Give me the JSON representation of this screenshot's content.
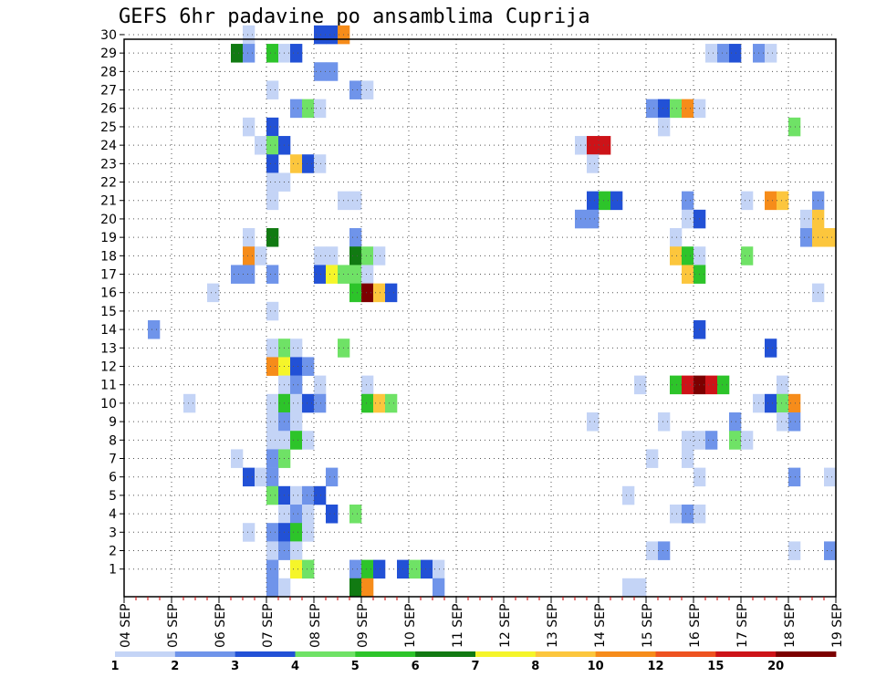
{
  "title": "GEFS 6hr padavine po ansamblima Cuprija",
  "chart_data": {
    "type": "heatmap",
    "title": "GEFS 6hr padavine po ansamblima Cuprija",
    "x_tick_labels": [
      "04 SEP",
      "05 SEP",
      "06 SEP",
      "07 SEP",
      "08 SEP",
      "09 SEP",
      "10 SEP",
      "11 SEP",
      "12 SEP",
      "13 SEP",
      "14 SEP",
      "15 SEP",
      "16 SEP",
      "17 SEP",
      "18 SEP",
      "19 SEP"
    ],
    "y_tick_labels": [
      "1",
      "2",
      "3",
      "4",
      "5",
      "6",
      "7",
      "8",
      "9",
      "10",
      "11",
      "12",
      "13",
      "14",
      "15",
      "16",
      "17",
      "18",
      "19",
      "20",
      "21",
      "22",
      "23",
      "24",
      "25",
      "26",
      "27",
      "28",
      "29",
      "30"
    ],
    "xlim": [
      0,
      60
    ],
    "ylim": [
      0,
      30
    ],
    "grid": true,
    "colorbar": {
      "levels": [
        "1",
        "2",
        "3",
        "4",
        "5",
        "6",
        "7",
        "8",
        "10",
        "12",
        "15",
        "20"
      ],
      "colors": [
        "#c4d4f6",
        "#6f94ea",
        "#2251d6",
        "#6fe266",
        "#2dc42a",
        "#117a12",
        "#f5f52a",
        "#fcc63d",
        "#f68c1a",
        "#ee5320",
        "#cd1318",
        "#7c0000"
      ]
    },
    "colors_by_class": {
      "1": "#c4d4f6",
      "2": "#6f94ea",
      "3": "#2251d6",
      "4": "#6fe266",
      "5": "#2dc42a",
      "6": "#117a12",
      "7": "#f5f52a",
      "8": "#fcc63d",
      "10": "#f68c1a",
      "12": "#ee5320",
      "15": "#cd1318",
      "20": "#7c0000"
    },
    "cells": [
      {
        "member": 30,
        "step": 10,
        "v": 1
      },
      {
        "member": 30,
        "step": 16,
        "v": 3
      },
      {
        "member": 30,
        "step": 17,
        "v": 3
      },
      {
        "member": 30,
        "step": 18,
        "v": 10
      },
      {
        "member": 29,
        "step": 9,
        "v": 6
      },
      {
        "member": 29,
        "step": 10,
        "v": 2
      },
      {
        "member": 29,
        "step": 12,
        "v": 5
      },
      {
        "member": 29,
        "step": 13,
        "v": 1
      },
      {
        "member": 29,
        "step": 14,
        "v": 3
      },
      {
        "member": 29,
        "step": 49,
        "v": 1
      },
      {
        "member": 29,
        "step": 50,
        "v": 2
      },
      {
        "member": 29,
        "step": 51,
        "v": 3
      },
      {
        "member": 29,
        "step": 53,
        "v": 2
      },
      {
        "member": 29,
        "step": 54,
        "v": 1
      },
      {
        "member": 28,
        "step": 16,
        "v": 2
      },
      {
        "member": 28,
        "step": 17,
        "v": 2
      },
      {
        "member": 27,
        "step": 12,
        "v": 1
      },
      {
        "member": 27,
        "step": 19,
        "v": 2
      },
      {
        "member": 27,
        "step": 20,
        "v": 1
      },
      {
        "member": 26,
        "step": 14,
        "v": 2
      },
      {
        "member": 26,
        "step": 15,
        "v": 4
      },
      {
        "member": 26,
        "step": 16,
        "v": 1
      },
      {
        "member": 26,
        "step": 44,
        "v": 2
      },
      {
        "member": 26,
        "step": 45,
        "v": 3
      },
      {
        "member": 26,
        "step": 46,
        "v": 4
      },
      {
        "member": 26,
        "step": 47,
        "v": 10
      },
      {
        "member": 26,
        "step": 48,
        "v": 1
      },
      {
        "member": 25,
        "step": 10,
        "v": 1
      },
      {
        "member": 25,
        "step": 12,
        "v": 3
      },
      {
        "member": 25,
        "step": 45,
        "v": 1
      },
      {
        "member": 25,
        "step": 56,
        "v": 4
      },
      {
        "member": 24,
        "step": 11,
        "v": 1
      },
      {
        "member": 24,
        "step": 12,
        "v": 4
      },
      {
        "member": 24,
        "step": 13,
        "v": 3
      },
      {
        "member": 24,
        "step": 38,
        "v": 1
      },
      {
        "member": 24,
        "step": 39,
        "v": 15
      },
      {
        "member": 24,
        "step": 40,
        "v": 15
      },
      {
        "member": 23,
        "step": 12,
        "v": 3
      },
      {
        "member": 23,
        "step": 14,
        "v": 8
      },
      {
        "member": 23,
        "step": 15,
        "v": 3
      },
      {
        "member": 23,
        "step": 16,
        "v": 1
      },
      {
        "member": 23,
        "step": 39,
        "v": 1
      },
      {
        "member": 22,
        "step": 12,
        "v": 1
      },
      {
        "member": 22,
        "step": 13,
        "v": 1
      },
      {
        "member": 21,
        "step": 12,
        "v": 1
      },
      {
        "member": 21,
        "step": 18,
        "v": 1
      },
      {
        "member": 21,
        "step": 19,
        "v": 1
      },
      {
        "member": 21,
        "step": 39,
        "v": 3
      },
      {
        "member": 21,
        "step": 40,
        "v": 5
      },
      {
        "member": 21,
        "step": 41,
        "v": 3
      },
      {
        "member": 21,
        "step": 47,
        "v": 2
      },
      {
        "member": 21,
        "step": 52,
        "v": 1
      },
      {
        "member": 21,
        "step": 54,
        "v": 10
      },
      {
        "member": 21,
        "step": 55,
        "v": 8
      },
      {
        "member": 21,
        "step": 58,
        "v": 2
      },
      {
        "member": 20,
        "step": 38,
        "v": 2
      },
      {
        "member": 20,
        "step": 39,
        "v": 2
      },
      {
        "member": 20,
        "step": 47,
        "v": 1
      },
      {
        "member": 20,
        "step": 48,
        "v": 3
      },
      {
        "member": 20,
        "step": 57,
        "v": 1
      },
      {
        "member": 20,
        "step": 58,
        "v": 8
      },
      {
        "member": 19,
        "step": 10,
        "v": 1
      },
      {
        "member": 19,
        "step": 12,
        "v": 6
      },
      {
        "member": 19,
        "step": 19,
        "v": 2
      },
      {
        "member": 19,
        "step": 46,
        "v": 1
      },
      {
        "member": 19,
        "step": 57,
        "v": 2
      },
      {
        "member": 19,
        "step": 58,
        "v": 8
      },
      {
        "member": 19,
        "step": 59,
        "v": 8
      },
      {
        "member": 18,
        "step": 10,
        "v": 10
      },
      {
        "member": 18,
        "step": 11,
        "v": 1
      },
      {
        "member": 18,
        "step": 16,
        "v": 1
      },
      {
        "member": 18,
        "step": 17,
        "v": 1
      },
      {
        "member": 18,
        "step": 19,
        "v": 6
      },
      {
        "member": 18,
        "step": 20,
        "v": 4
      },
      {
        "member": 18,
        "step": 21,
        "v": 1
      },
      {
        "member": 18,
        "step": 46,
        "v": 8
      },
      {
        "member": 18,
        "step": 47,
        "v": 5
      },
      {
        "member": 18,
        "step": 48,
        "v": 1
      },
      {
        "member": 18,
        "step": 52,
        "v": 4
      },
      {
        "member": 17,
        "step": 9,
        "v": 2
      },
      {
        "member": 17,
        "step": 10,
        "v": 2
      },
      {
        "member": 17,
        "step": 12,
        "v": 2
      },
      {
        "member": 17,
        "step": 16,
        "v": 3
      },
      {
        "member": 17,
        "step": 17,
        "v": 7
      },
      {
        "member": 17,
        "step": 18,
        "v": 4
      },
      {
        "member": 17,
        "step": 19,
        "v": 4
      },
      {
        "member": 17,
        "step": 20,
        "v": 1
      },
      {
        "member": 17,
        "step": 47,
        "v": 8
      },
      {
        "member": 17,
        "step": 48,
        "v": 5
      },
      {
        "member": 16,
        "step": 7,
        "v": 1
      },
      {
        "member": 16,
        "step": 19,
        "v": 5
      },
      {
        "member": 16,
        "step": 20,
        "v": 20
      },
      {
        "member": 16,
        "step": 21,
        "v": 8
      },
      {
        "member": 16,
        "step": 22,
        "v": 3
      },
      {
        "member": 16,
        "step": 58,
        "v": 1
      },
      {
        "member": 15,
        "step": 12,
        "v": 1
      },
      {
        "member": 14,
        "step": 2,
        "v": 2
      },
      {
        "member": 14,
        "step": 48,
        "v": 3
      },
      {
        "member": 13,
        "step": 12,
        "v": 1
      },
      {
        "member": 13,
        "step": 13,
        "v": 4
      },
      {
        "member": 13,
        "step": 14,
        "v": 1
      },
      {
        "member": 13,
        "step": 18,
        "v": 4
      },
      {
        "member": 13,
        "step": 54,
        "v": 3
      },
      {
        "member": 12,
        "step": 12,
        "v": 10
      },
      {
        "member": 12,
        "step": 13,
        "v": 7
      },
      {
        "member": 12,
        "step": 14,
        "v": 3
      },
      {
        "member": 12,
        "step": 15,
        "v": 2
      },
      {
        "member": 11,
        "step": 13,
        "v": 1
      },
      {
        "member": 11,
        "step": 14,
        "v": 2
      },
      {
        "member": 11,
        "step": 16,
        "v": 1
      },
      {
        "member": 11,
        "step": 20,
        "v": 1
      },
      {
        "member": 11,
        "step": 43,
        "v": 1
      },
      {
        "member": 11,
        "step": 46,
        "v": 5
      },
      {
        "member": 11,
        "step": 47,
        "v": 15
      },
      {
        "member": 11,
        "step": 48,
        "v": 20
      },
      {
        "member": 11,
        "step": 49,
        "v": 15
      },
      {
        "member": 11,
        "step": 50,
        "v": 5
      },
      {
        "member": 11,
        "step": 55,
        "v": 1
      },
      {
        "member": 10,
        "step": 5,
        "v": 1
      },
      {
        "member": 10,
        "step": 12,
        "v": 1
      },
      {
        "member": 10,
        "step": 13,
        "v": 5
      },
      {
        "member": 10,
        "step": 14,
        "v": 1
      },
      {
        "member": 10,
        "step": 15,
        "v": 3
      },
      {
        "member": 10,
        "step": 16,
        "v": 2
      },
      {
        "member": 10,
        "step": 20,
        "v": 5
      },
      {
        "member": 10,
        "step": 21,
        "v": 8
      },
      {
        "member": 10,
        "step": 22,
        "v": 4
      },
      {
        "member": 10,
        "step": 53,
        "v": 1
      },
      {
        "member": 10,
        "step": 54,
        "v": 3
      },
      {
        "member": 10,
        "step": 55,
        "v": 4
      },
      {
        "member": 10,
        "step": 56,
        "v": 10
      },
      {
        "member": 9,
        "step": 12,
        "v": 1
      },
      {
        "member": 9,
        "step": 13,
        "v": 2
      },
      {
        "member": 9,
        "step": 14,
        "v": 1
      },
      {
        "member": 9,
        "step": 39,
        "v": 1
      },
      {
        "member": 9,
        "step": 45,
        "v": 1
      },
      {
        "member": 9,
        "step": 51,
        "v": 2
      },
      {
        "member": 9,
        "step": 55,
        "v": 1
      },
      {
        "member": 9,
        "step": 56,
        "v": 2
      },
      {
        "member": 8,
        "step": 12,
        "v": 1
      },
      {
        "member": 8,
        "step": 13,
        "v": 1
      },
      {
        "member": 8,
        "step": 14,
        "v": 5
      },
      {
        "member": 8,
        "step": 15,
        "v": 1
      },
      {
        "member": 8,
        "step": 47,
        "v": 1
      },
      {
        "member": 8,
        "step": 48,
        "v": 1
      },
      {
        "member": 8,
        "step": 49,
        "v": 2
      },
      {
        "member": 8,
        "step": 51,
        "v": 4
      },
      {
        "member": 8,
        "step": 52,
        "v": 1
      },
      {
        "member": 7,
        "step": 9,
        "v": 1
      },
      {
        "member": 7,
        "step": 12,
        "v": 2
      },
      {
        "member": 7,
        "step": 13,
        "v": 4
      },
      {
        "member": 7,
        "step": 44,
        "v": 1
      },
      {
        "member": 7,
        "step": 47,
        "v": 1
      },
      {
        "member": 6,
        "step": 10,
        "v": 3
      },
      {
        "member": 6,
        "step": 11,
        "v": 1
      },
      {
        "member": 6,
        "step": 12,
        "v": 2
      },
      {
        "member": 6,
        "step": 17,
        "v": 2
      },
      {
        "member": 6,
        "step": 48,
        "v": 1
      },
      {
        "member": 6,
        "step": 56,
        "v": 2
      },
      {
        "member": 6,
        "step": 59,
        "v": 1
      },
      {
        "member": 5,
        "step": 12,
        "v": 4
      },
      {
        "member": 5,
        "step": 13,
        "v": 3
      },
      {
        "member": 5,
        "step": 14,
        "v": 1
      },
      {
        "member": 5,
        "step": 15,
        "v": 2
      },
      {
        "member": 5,
        "step": 16,
        "v": 3
      },
      {
        "member": 5,
        "step": 42,
        "v": 1
      },
      {
        "member": 4,
        "step": 13,
        "v": 1
      },
      {
        "member": 4,
        "step": 14,
        "v": 2
      },
      {
        "member": 4,
        "step": 15,
        "v": 1
      },
      {
        "member": 4,
        "step": 17,
        "v": 3
      },
      {
        "member": 4,
        "step": 19,
        "v": 4
      },
      {
        "member": 4,
        "step": 46,
        "v": 1
      },
      {
        "member": 4,
        "step": 47,
        "v": 2
      },
      {
        "member": 4,
        "step": 48,
        "v": 1
      },
      {
        "member": 3,
        "step": 10,
        "v": 1
      },
      {
        "member": 3,
        "step": 12,
        "v": 2
      },
      {
        "member": 3,
        "step": 13,
        "v": 3
      },
      {
        "member": 3,
        "step": 14,
        "v": 5
      },
      {
        "member": 3,
        "step": 15,
        "v": 1
      },
      {
        "member": 2,
        "step": 12,
        "v": 1
      },
      {
        "member": 2,
        "step": 13,
        "v": 2
      },
      {
        "member": 2,
        "step": 14,
        "v": 1
      },
      {
        "member": 2,
        "step": 44,
        "v": 1
      },
      {
        "member": 2,
        "step": 45,
        "v": 2
      },
      {
        "member": 2,
        "step": 56,
        "v": 1
      },
      {
        "member": 2,
        "step": 59,
        "v": 2
      },
      {
        "member": 1,
        "step": 12,
        "v": 2
      },
      {
        "member": 1,
        "step": 14,
        "v": 7
      },
      {
        "member": 1,
        "step": 15,
        "v": 4
      },
      {
        "member": 1,
        "step": 19,
        "v": 2
      },
      {
        "member": 1,
        "step": 20,
        "v": 5
      },
      {
        "member": 1,
        "step": 21,
        "v": 3
      },
      {
        "member": 1,
        "step": 23,
        "v": 3
      },
      {
        "member": 1,
        "step": 24,
        "v": 4
      },
      {
        "member": 1,
        "step": 25,
        "v": 3
      },
      {
        "member": 1,
        "step": 26,
        "v": 1
      },
      {
        "member": 0,
        "step": 12,
        "v": 2
      },
      {
        "member": 0,
        "step": 13,
        "v": 1
      },
      {
        "member": 0,
        "step": 19,
        "v": 6
      },
      {
        "member": 0,
        "step": 20,
        "v": 10
      },
      {
        "member": 0,
        "step": 26,
        "v": 2
      },
      {
        "member": 0,
        "step": 42,
        "v": 1
      },
      {
        "member": 0,
        "step": 43,
        "v": 1
      }
    ]
  }
}
